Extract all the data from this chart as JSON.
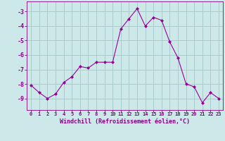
{
  "x": [
    0,
    1,
    2,
    3,
    4,
    5,
    6,
    7,
    8,
    9,
    10,
    11,
    12,
    13,
    14,
    15,
    16,
    17,
    18,
    19,
    20,
    21,
    22,
    23
  ],
  "y": [
    -8.1,
    -8.6,
    -9.0,
    -8.7,
    -7.9,
    -7.5,
    -6.8,
    -6.9,
    -6.5,
    -6.5,
    -6.5,
    -4.2,
    -3.5,
    -2.8,
    -4.0,
    -3.4,
    -3.6,
    -5.1,
    -6.2,
    -8.0,
    -8.2,
    -9.3,
    -8.6,
    -9.0
  ],
  "line_color": "#990099",
  "marker": "D",
  "marker_size": 2,
  "bg_color": "#cce8e8",
  "grid_color": "#aacccc",
  "xlabel": "Windchill (Refroidissement éolien,°C)",
  "xlabel_color": "#880088",
  "tick_color": "#880088",
  "ylim": [
    -9.8,
    -2.3
  ],
  "xlim": [
    -0.5,
    23.5
  ],
  "yticks": [
    -9,
    -8,
    -7,
    -6,
    -5,
    -4,
    -3
  ],
  "xticks": [
    0,
    1,
    2,
    3,
    4,
    5,
    6,
    7,
    8,
    9,
    10,
    11,
    12,
    13,
    14,
    15,
    16,
    17,
    18,
    19,
    20,
    21,
    22,
    23
  ]
}
